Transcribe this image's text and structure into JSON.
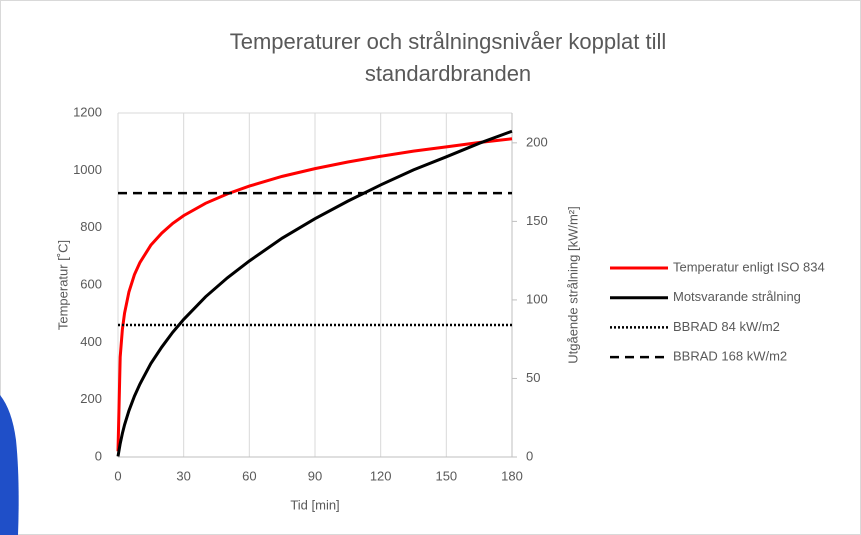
{
  "chart_data": {
    "type": "line",
    "title": "Temperaturer och strålningsnivåer kopplat till standardbranden",
    "x_label": "Tid [min]",
    "y_label": "Temperatur [˚C]",
    "y2_label": "Utgående strålning [kW/m²]",
    "x": [
      0,
      1,
      2,
      3,
      5,
      7.5,
      10,
      15,
      20,
      25,
      30,
      40,
      50,
      60,
      75,
      90,
      105,
      120,
      135,
      150,
      165,
      180
    ],
    "series": [
      {
        "name": "Temperatur enligt ISO 834",
        "color": "#ff0000",
        "style": "solid",
        "values": [
          20,
          349,
          445,
          502,
          576,
          636,
          678,
          739,
          781,
          815,
          842,
          885,
          918,
          945,
          979,
          1006,
          1029,
          1049,
          1067,
          1082,
          1097,
          1110
        ]
      },
      {
        "name": "Motsvarande strålning",
        "color": "#000000",
        "style": "solid",
        "axis": "y2",
        "values": [
          0.4,
          8.5,
          15.0,
          20.5,
          29.5,
          38.7,
          46.4,
          59.5,
          70.0,
          79.4,
          87.6,
          102.0,
          114.1,
          124.8,
          139.3,
          151.7,
          162.9,
          173.2,
          182.8,
          191.1,
          199.7,
          207.4
        ]
      },
      {
        "name": "BBRAD 84 kW/m2",
        "color": "#000000",
        "style": "dotted",
        "axis": "y2",
        "x": [
          0,
          180
        ],
        "values": [
          84,
          84
        ]
      },
      {
        "name": "BBRAD 168 kW/m2",
        "color": "#000000",
        "style": "dashed",
        "axis": "y2",
        "x": [
          0,
          180
        ],
        "values": [
          168,
          168
        ]
      }
    ],
    "xlim": [
      0,
      180
    ],
    "xticks": [
      0,
      30,
      60,
      90,
      120,
      150,
      180
    ],
    "ylim": [
      0,
      1200
    ],
    "yticks": [
      0,
      200,
      400,
      600,
      800,
      1000,
      1200
    ],
    "y2lim": [
      0,
      219
    ],
    "y2ticks": [
      0,
      50,
      100,
      150,
      200
    ],
    "grid": "x",
    "legend": "right"
  }
}
